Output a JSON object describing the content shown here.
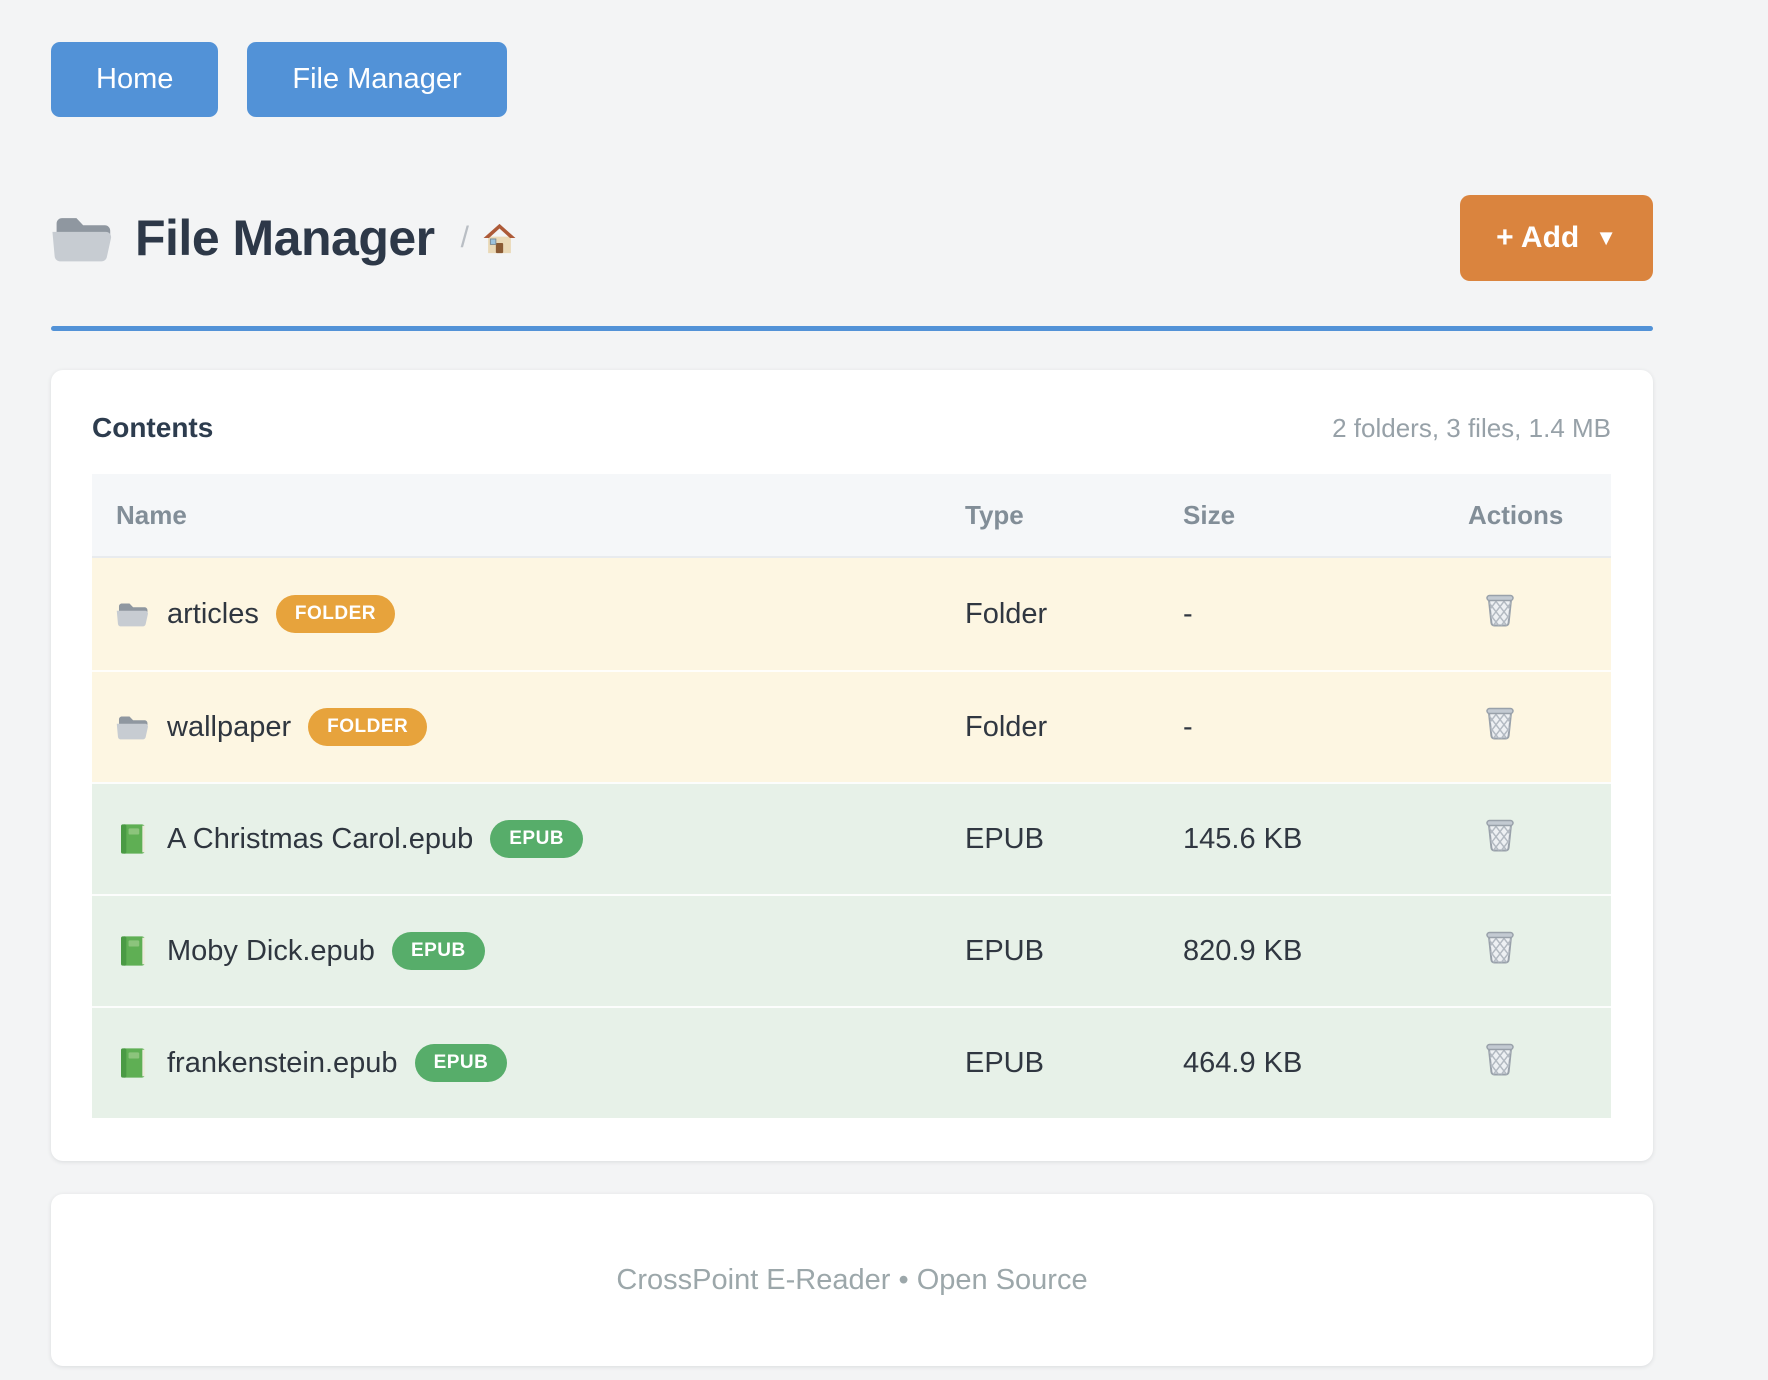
{
  "nav": {
    "items": [
      {
        "label": "Home"
      },
      {
        "label": "File Manager"
      }
    ]
  },
  "header": {
    "title": "File Manager",
    "breadcrumb_separator": "/",
    "add_button": {
      "label": "+ Add",
      "caret": "▼"
    }
  },
  "contents": {
    "heading": "Contents",
    "summary": "2 folders, 3 files, 1.4 MB",
    "table": {
      "columns": [
        "Name",
        "Type",
        "Size",
        "Actions"
      ],
      "rows": [
        {
          "name": "articles",
          "badge": "FOLDER",
          "kind": "folder",
          "type": "Folder",
          "size": "-"
        },
        {
          "name": "wallpaper",
          "badge": "FOLDER",
          "kind": "folder",
          "type": "Folder",
          "size": "-"
        },
        {
          "name": "A Christmas Carol.epub",
          "badge": "EPUB",
          "kind": "epub",
          "type": "EPUB",
          "size": "145.6 KB"
        },
        {
          "name": "Moby Dick.epub",
          "badge": "EPUB",
          "kind": "epub",
          "type": "EPUB",
          "size": "820.9 KB"
        },
        {
          "name": "frankenstein.epub",
          "badge": "EPUB",
          "kind": "epub",
          "type": "EPUB",
          "size": "464.9 KB"
        }
      ]
    }
  },
  "footer": {
    "text": "CrossPoint E-Reader • Open Source"
  },
  "colors": {
    "accent_blue": "#5292d7",
    "accent_orange": "#da843e",
    "folder_badge": "#e7a33c",
    "epub_badge": "#57ad6a",
    "folder_row_bg": "#fdf6e2",
    "epub_row_bg": "#e7f1e8"
  }
}
